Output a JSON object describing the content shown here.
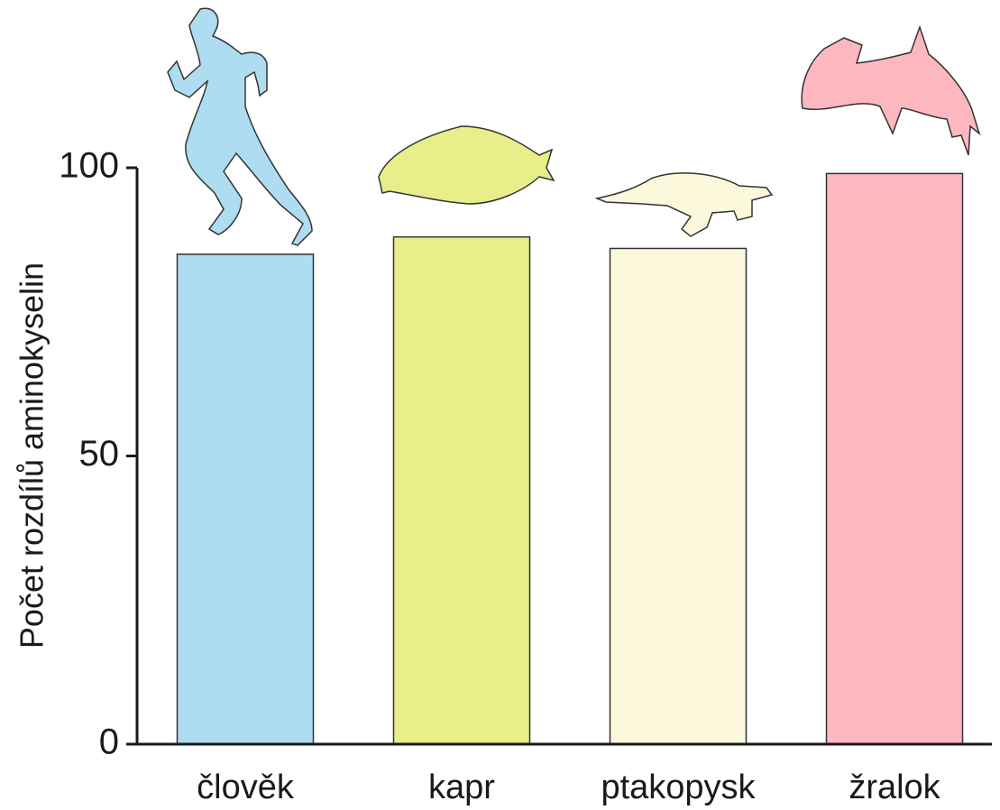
{
  "chart_data": {
    "type": "bar",
    "y_label": "Počet rozdílů aminokyselin",
    "categories": [
      "člověk",
      "kapr",
      "ptakopysk",
      "žralok"
    ],
    "values": [
      85,
      88,
      86,
      99
    ],
    "colors": [
      "#aedcf0",
      "#e8ee8a",
      "#fcf8dc",
      "#fdb8bf"
    ],
    "ylim": [
      0,
      100
    ],
    "yticks": [
      0,
      50,
      100
    ],
    "grid": false
  }
}
